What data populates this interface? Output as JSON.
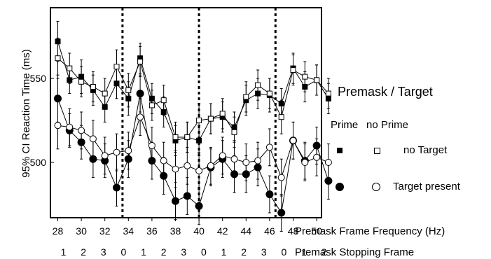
{
  "chart_data": {
    "type": "line",
    "ylabel": "95% CI Reaction Time (ms)",
    "xlabel": "Premask Frame Frequency (Hz)",
    "xlabel2": "Premask Stopping Frame",
    "x": [
      28,
      29,
      30,
      31,
      32,
      33,
      34,
      35,
      36,
      37,
      38,
      39,
      40,
      41,
      42,
      43,
      44,
      45,
      46,
      47,
      48,
      49,
      50,
      51
    ],
    "x_ticks": [
      "28",
      "30",
      "32",
      "34",
      "36",
      "38",
      "40",
      "42",
      "44",
      "46",
      "48",
      "50"
    ],
    "stopping_frames": [
      "1",
      "2",
      "3",
      "0",
      "1",
      "2",
      "3",
      "0",
      "1",
      "2",
      "3",
      "0",
      "1",
      "2"
    ],
    "y_ticks": [
      "500",
      "550"
    ],
    "ylim": [
      465,
      590
    ],
    "vertical_dividers": [
      33.5,
      40,
      46.5
    ],
    "legend": {
      "title": "Premask / Target",
      "columns": [
        "Prime",
        "no Prime"
      ],
      "rows": [
        "no Target",
        "Target present"
      ]
    },
    "series": [
      {
        "prime": "Prime",
        "target": "no Target",
        "marker": "filled-square",
        "values": [
          572,
          549,
          551,
          543,
          533,
          547,
          538,
          562,
          538,
          530,
          513,
          515,
          513,
          526,
          527,
          521,
          537,
          541,
          540,
          535,
          556,
          545,
          549,
          538
        ],
        "err": [
          12,
          8,
          10,
          9,
          9,
          9,
          10,
          9,
          9,
          9,
          9,
          9,
          9,
          9,
          9,
          9,
          9,
          9,
          10,
          9,
          9,
          9,
          9,
          9
        ]
      },
      {
        "prime": "no Prime",
        "target": "no Target",
        "marker": "open-square",
        "values": [
          562,
          556,
          548,
          545,
          541,
          557,
          543,
          560,
          534,
          537,
          515,
          515,
          525,
          526,
          529,
          518,
          539,
          546,
          541,
          527,
          555,
          551,
          549,
          541
        ],
        "err": [
          12,
          9,
          9,
          9,
          9,
          10,
          10,
          9,
          9,
          9,
          9,
          9,
          10,
          9,
          9,
          9,
          9,
          9,
          9,
          10,
          9,
          9,
          9,
          9
        ]
      },
      {
        "prime": "Prime",
        "target": "Target present",
        "marker": "filled-circle",
        "values": [
          538,
          519,
          512,
          502,
          501,
          485,
          502,
          541,
          501,
          492,
          477,
          480,
          474,
          497,
          502,
          493,
          493,
          497,
          481,
          470,
          513,
          501,
          510,
          489
        ],
        "err": [
          14,
          10,
          10,
          11,
          10,
          11,
          11,
          11,
          11,
          11,
          11,
          11,
          11,
          11,
          11,
          11,
          11,
          11,
          11,
          11,
          11,
          11,
          11,
          11
        ]
      },
      {
        "prime": "no Prime",
        "target": "Target present",
        "marker": "open-circle",
        "values": [
          522,
          521,
          519,
          514,
          504,
          506,
          507,
          527,
          510,
          501,
          496,
          498,
          495,
          498,
          504,
          502,
          500,
          501,
          509,
          491,
          513,
          500,
          503,
          500
        ],
        "err": [
          14,
          11,
          11,
          11,
          11,
          11,
          11,
          11,
          11,
          11,
          11,
          11,
          11,
          11,
          11,
          11,
          11,
          11,
          11,
          11,
          11,
          11,
          11,
          11
        ]
      }
    ]
  }
}
